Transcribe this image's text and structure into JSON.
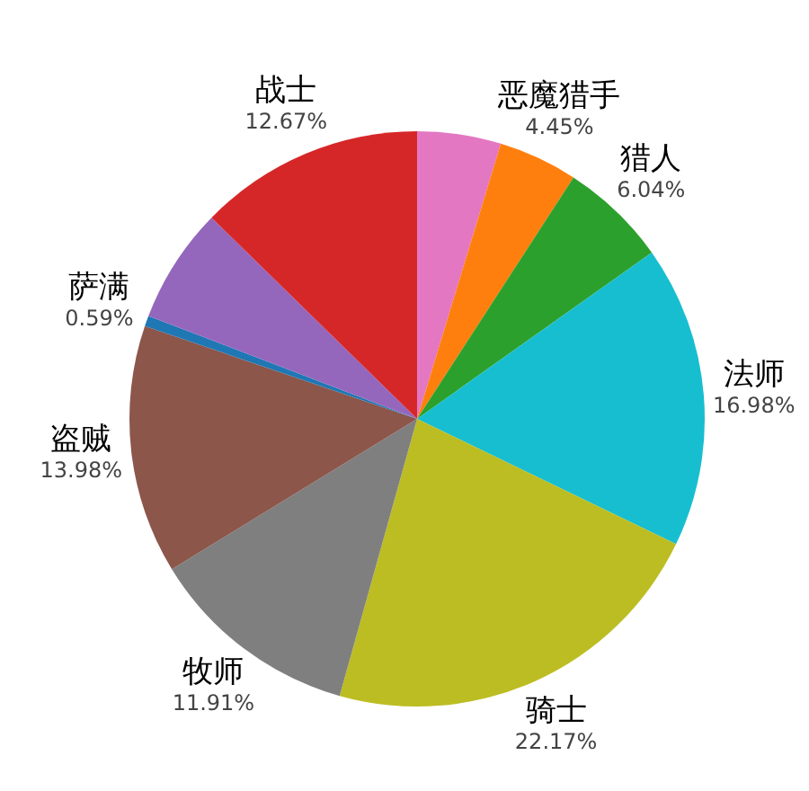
{
  "chart_data": {
    "type": "pie",
    "categories": [
      null,
      "恶魔猎手",
      "猎人",
      "法师",
      "骑士",
      "牧师",
      "盗贼",
      "萨满",
      null,
      "战士"
    ],
    "values": [
      4.7,
      4.45,
      6.04,
      16.98,
      22.17,
      11.91,
      13.98,
      0.59,
      6.51,
      12.67
    ],
    "value_labels": [
      null,
      "4.45%",
      "6.04%",
      "16.98%",
      "22.17%",
      "11.91%",
      "13.98%",
      "0.59%",
      null,
      "12.67%"
    ],
    "colors": [
      "#e377c2",
      "#ff7f0e",
      "#2ca02c",
      "#17becf",
      "#bcbd22",
      "#7f7f7f",
      "#8c564b",
      "#1f77b4",
      "#9467bd",
      "#d62728"
    ]
  }
}
